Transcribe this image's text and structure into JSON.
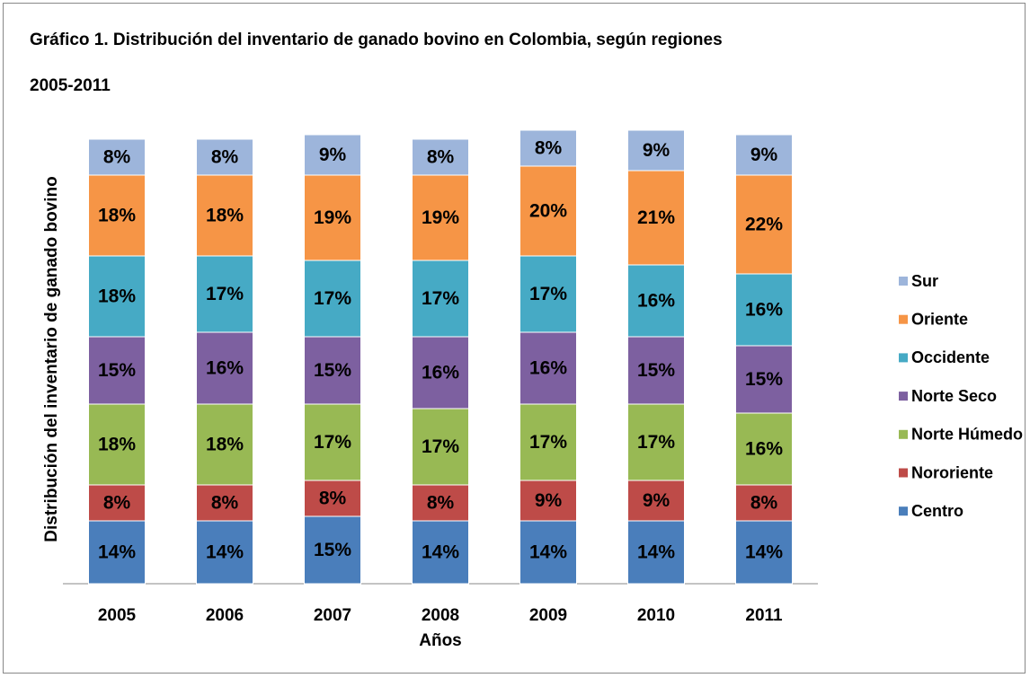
{
  "chart_data": {
    "type": "stacked_bar",
    "title": "Gráfico 1. Distribución del inventario de ganado bovino en Colombia, según regiones",
    "subtitle": "2005-2011",
    "x_label": "Años",
    "y_label": "Distribución del inventario de ganado bovino",
    "categories": [
      "2005",
      "2006",
      "2007",
      "2008",
      "2009",
      "2010",
      "2011"
    ],
    "ylim": [
      0,
      100
    ],
    "legend": "right",
    "series": [
      {
        "name": "Centro",
        "color": "#4a7ebb",
        "values": [
          14,
          14,
          15,
          14,
          14,
          14,
          14
        ],
        "value_labels": [
          "14%",
          "14%",
          "15%",
          "14%",
          "14%",
          "14%",
          "14%"
        ]
      },
      {
        "name": "Nororiente",
        "color": "#be4b48",
        "values": [
          8,
          8,
          8,
          8,
          9,
          9,
          8
        ],
        "value_labels": [
          "8%",
          "8%",
          "8%",
          "8%",
          "9%",
          "9%",
          "8%"
        ]
      },
      {
        "name": "Norte Húmedo",
        "color": "#98b954",
        "values": [
          18,
          18,
          17,
          17,
          17,
          17,
          16
        ],
        "value_labels": [
          "18%",
          "18%",
          "17%",
          "17%",
          "17%",
          "17%",
          "16%"
        ]
      },
      {
        "name": "Norte Seco",
        "color": "#7d60a0",
        "values": [
          15,
          16,
          15,
          16,
          16,
          15,
          15
        ],
        "value_labels": [
          "15%",
          "16%",
          "15%",
          "16%",
          "16%",
          "15%",
          "15%"
        ]
      },
      {
        "name": "Occidente",
        "color": "#46aac5",
        "values": [
          18,
          17,
          17,
          17,
          17,
          16,
          16
        ],
        "value_labels": [
          "18%",
          "17%",
          "17%",
          "17%",
          "17%",
          "16%",
          "16%"
        ]
      },
      {
        "name": "Oriente",
        "color": "#f69546",
        "values": [
          18,
          18,
          19,
          19,
          20,
          21,
          22
        ],
        "value_labels": [
          "18%",
          "18%",
          "19%",
          "19%",
          "20%",
          "21%",
          "22%"
        ]
      },
      {
        "name": "Sur",
        "color": "#9db5db",
        "values": [
          8,
          8,
          9,
          8,
          8,
          9,
          9
        ],
        "value_labels": [
          "8%",
          "8%",
          "9%",
          "8%",
          "8%",
          "9%",
          "9%"
        ]
      }
    ]
  }
}
